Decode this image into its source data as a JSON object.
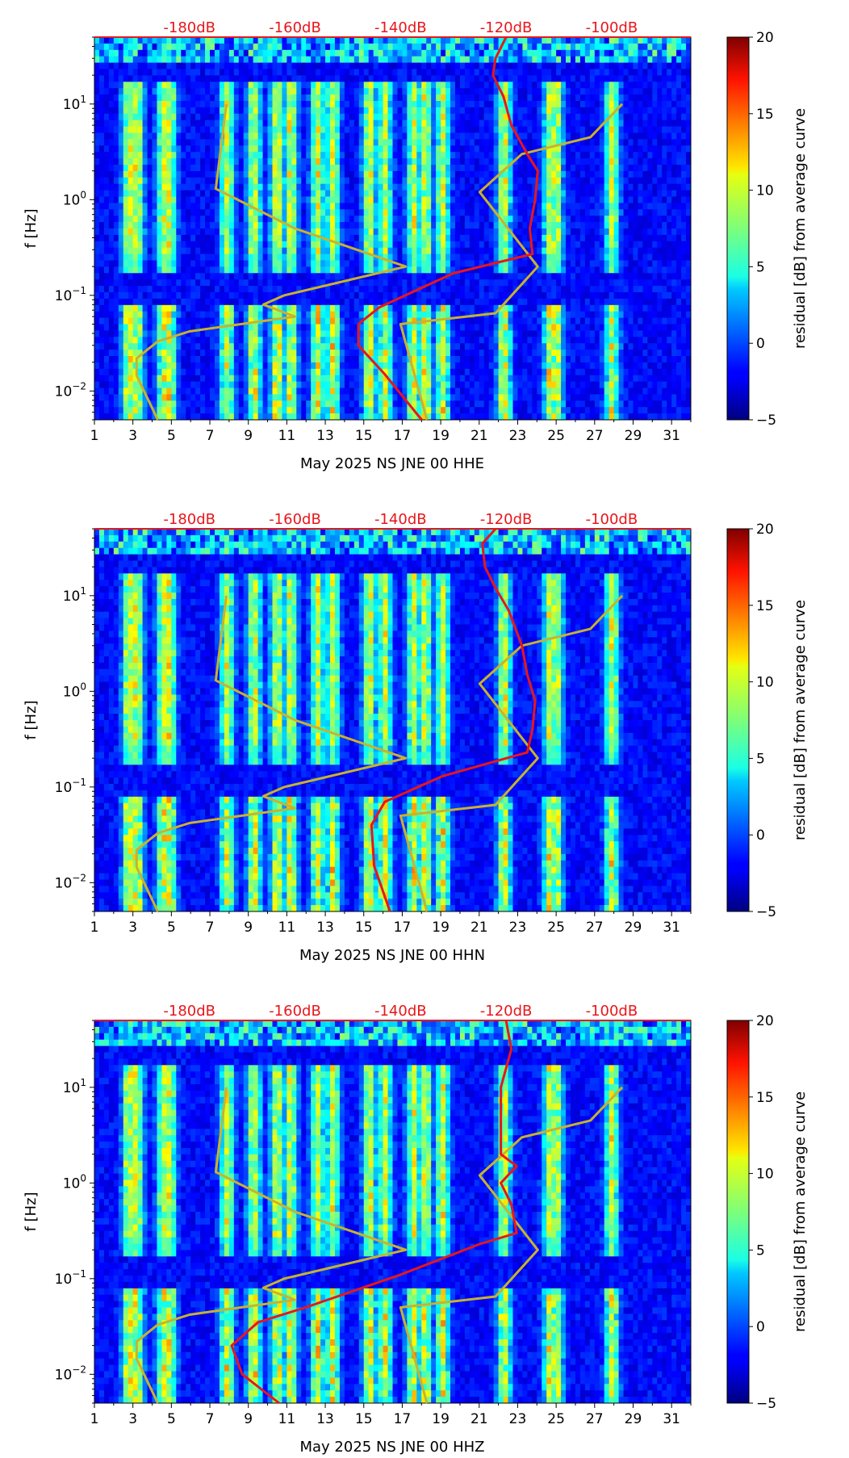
{
  "colors": {
    "background": "#ffffff",
    "noise_model_lines": "#c8b22e",
    "median_psd_line": "#e8161b",
    "db_scale_labels": "#e8161b",
    "axis": "#000000"
  },
  "colormap": "jet",
  "chart_data": [
    {
      "type": "heatmap",
      "xlabel": "May 2025 NS JNE 00 HHE",
      "ylabel": "f [Hz]",
      "x_ticks": [
        "1",
        "3",
        "5",
        "7",
        "9",
        "11",
        "13",
        "15",
        "17",
        "19",
        "21",
        "23",
        "25",
        "27",
        "29",
        "31"
      ],
      "xlim": [
        1,
        32
      ],
      "y_scale": "log",
      "ylim": [
        0.005,
        50
      ],
      "y_ticks": [
        {
          "base": "10",
          "exp": "1"
        },
        {
          "base": "10",
          "exp": "0"
        },
        {
          "base": "10",
          "exp": "−1"
        },
        {
          "base": "10",
          "exp": "−2"
        }
      ],
      "top_axis_labels": [
        "-180dB",
        "-160dB",
        "-140dB",
        "-120dB",
        "-100dB"
      ],
      "top_axis_values": [
        -180,
        -160,
        -140,
        -120,
        -100
      ],
      "colorbar": {
        "label": "residual [dB] from average curve",
        "range": [
          -5,
          20
        ],
        "ticks": [
          "20",
          "15",
          "10",
          "5",
          "0",
          "−5"
        ]
      },
      "series": [
        {
          "kind": "noise_model_low",
          "points": [
            [
              -186,
              0.005
            ],
            [
              -190,
              0.0145
            ],
            [
              -190,
              0.022
            ],
            [
              -186,
              0.033
            ],
            [
              -180,
              0.042
            ],
            [
              -160,
              0.06
            ],
            [
              -166,
              0.08
            ],
            [
              -162,
              0.1
            ],
            [
              -139,
              0.2
            ],
            [
              -160,
              0.5
            ],
            [
              -175,
              1.3
            ],
            [
              -173,
              10
            ]
          ]
        },
        {
          "kind": "noise_model_high",
          "points": [
            [
              -135,
              0.005
            ],
            [
              -140,
              0.05
            ],
            [
              -122,
              0.065
            ],
            [
              -114,
              0.2
            ],
            [
              -125,
              1.2
            ],
            [
              -117,
              3
            ],
            [
              -104,
              4.5
            ],
            [
              -98,
              10
            ]
          ]
        },
        {
          "kind": "median_psd",
          "points": [
            [
              -136,
              0.005
            ],
            [
              -143,
              0.015
            ],
            [
              -148,
              0.03
            ],
            [
              -148,
              0.05
            ],
            [
              -144,
              0.075
            ],
            [
              -130,
              0.17
            ],
            [
              -115,
              0.27
            ],
            [
              -115.5,
              0.5
            ],
            [
              -114.5,
              1
            ],
            [
              -114,
              2
            ],
            [
              -116,
              3
            ],
            [
              -119,
              6
            ],
            [
              -120.5,
              12
            ],
            [
              -122.5,
              20
            ],
            [
              -122,
              30
            ],
            [
              -120,
              50
            ]
          ]
        }
      ]
    },
    {
      "type": "heatmap",
      "xlabel": "May 2025 NS JNE 00 HHN",
      "ylabel": "f [Hz]",
      "x_ticks": [
        "1",
        "3",
        "5",
        "7",
        "9",
        "11",
        "13",
        "15",
        "17",
        "19",
        "21",
        "23",
        "25",
        "27",
        "29",
        "31"
      ],
      "xlim": [
        1,
        32
      ],
      "y_scale": "log",
      "ylim": [
        0.005,
        50
      ],
      "y_ticks": [
        {
          "base": "10",
          "exp": "1"
        },
        {
          "base": "10",
          "exp": "0"
        },
        {
          "base": "10",
          "exp": "−1"
        },
        {
          "base": "10",
          "exp": "−2"
        }
      ],
      "top_axis_labels": [
        "-180dB",
        "-160dB",
        "-140dB",
        "-120dB",
        "-100dB"
      ],
      "top_axis_values": [
        -180,
        -160,
        -140,
        -120,
        -100
      ],
      "colorbar": {
        "label": "residual [dB] from average curve",
        "range": [
          -5,
          20
        ],
        "ticks": [
          "20",
          "15",
          "10",
          "5",
          "0",
          "−5"
        ]
      },
      "series": [
        {
          "kind": "noise_model_low",
          "points": [
            [
              -186,
              0.005
            ],
            [
              -190,
              0.0145
            ],
            [
              -190,
              0.022
            ],
            [
              -186,
              0.033
            ],
            [
              -180,
              0.042
            ],
            [
              -160,
              0.06
            ],
            [
              -166,
              0.08
            ],
            [
              -162,
              0.1
            ],
            [
              -139,
              0.2
            ],
            [
              -160,
              0.5
            ],
            [
              -175,
              1.3
            ],
            [
              -173,
              10
            ]
          ]
        },
        {
          "kind": "noise_model_high",
          "points": [
            [
              -135,
              0.005
            ],
            [
              -140,
              0.05
            ],
            [
              -122,
              0.065
            ],
            [
              -114,
              0.2
            ],
            [
              -125,
              1.2
            ],
            [
              -117,
              3
            ],
            [
              -104,
              4.5
            ],
            [
              -98,
              10
            ]
          ]
        },
        {
          "kind": "median_psd",
          "points": [
            [
              -142,
              0.005
            ],
            [
              -145,
              0.015
            ],
            [
              -145.5,
              0.04
            ],
            [
              -143,
              0.07
            ],
            [
              -132,
              0.13
            ],
            [
              -116,
              0.23
            ],
            [
              -115,
              0.4
            ],
            [
              -114.5,
              0.8
            ],
            [
              -116,
              1.5
            ],
            [
              -117,
              3
            ],
            [
              -119.5,
              7
            ],
            [
              -122,
              12
            ],
            [
              -124,
              20
            ],
            [
              -124.5,
              35
            ],
            [
              -122,
              50
            ]
          ]
        }
      ]
    },
    {
      "type": "heatmap",
      "xlabel": "May 2025 NS JNE 00 HHZ",
      "ylabel": "f [Hz]",
      "x_ticks": [
        "1",
        "3",
        "5",
        "7",
        "9",
        "11",
        "13",
        "15",
        "17",
        "19",
        "21",
        "23",
        "25",
        "27",
        "29",
        "31"
      ],
      "xlim": [
        1,
        32
      ],
      "y_scale": "log",
      "ylim": [
        0.005,
        50
      ],
      "y_ticks": [
        {
          "base": "10",
          "exp": "1"
        },
        {
          "base": "10",
          "exp": "0"
        },
        {
          "base": "10",
          "exp": "−1"
        },
        {
          "base": "10",
          "exp": "−2"
        }
      ],
      "top_axis_labels": [
        "-180dB",
        "-160dB",
        "-140dB",
        "-120dB",
        "-100dB"
      ],
      "top_axis_values": [
        -180,
        -160,
        -140,
        -120,
        -100
      ],
      "colorbar": {
        "label": "residual [dB] from average curve",
        "range": [
          -5,
          20
        ],
        "ticks": [
          "20",
          "15",
          "10",
          "5",
          "0",
          "−5"
        ]
      },
      "series": [
        {
          "kind": "noise_model_low",
          "points": [
            [
              -186,
              0.005
            ],
            [
              -190,
              0.0145
            ],
            [
              -190,
              0.022
            ],
            [
              -186,
              0.033
            ],
            [
              -180,
              0.042
            ],
            [
              -160,
              0.06
            ],
            [
              -166,
              0.08
            ],
            [
              -162,
              0.1
            ],
            [
              -139,
              0.2
            ],
            [
              -160,
              0.5
            ],
            [
              -175,
              1.3
            ],
            [
              -173,
              10
            ]
          ]
        },
        {
          "kind": "noise_model_high",
          "points": [
            [
              -135,
              0.005
            ],
            [
              -140,
              0.05
            ],
            [
              -122,
              0.065
            ],
            [
              -114,
              0.2
            ],
            [
              -125,
              1.2
            ],
            [
              -117,
              3
            ],
            [
              -104,
              4.5
            ],
            [
              -98,
              10
            ]
          ]
        },
        {
          "kind": "median_psd",
          "points": [
            [
              -163,
              0.005
            ],
            [
              -170,
              0.01
            ],
            [
              -172,
              0.02
            ],
            [
              -167,
              0.035
            ],
            [
              -158,
              0.05
            ],
            [
              -140,
              0.11
            ],
            [
              -125,
              0.23
            ],
            [
              -118,
              0.3
            ],
            [
              -119,
              0.6
            ],
            [
              -121,
              1
            ],
            [
              -118,
              1.5
            ],
            [
              -121,
              2
            ],
            [
              -121,
              4
            ],
            [
              -121,
              10
            ],
            [
              -119,
              25
            ],
            [
              -120,
              50
            ]
          ]
        }
      ]
    }
  ]
}
